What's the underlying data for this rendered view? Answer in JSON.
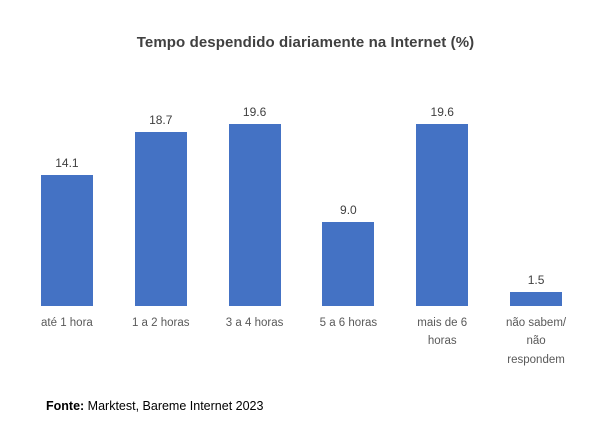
{
  "title": "Tempo despendido diariamente na Internet (%)",
  "footer": {
    "label": "Fonte:",
    "text": " Marktest, Bareme Internet 2023"
  },
  "colors": {
    "bar": "#4472C4",
    "title_text": "#404040",
    "value_label_text": "#404040",
    "category_label_text": "#595959"
  },
  "chart_data": {
    "type": "bar",
    "title": "Tempo despendido diariamente na Internet (%)",
    "categories": [
      "até 1 hora",
      "1 a 2 horas",
      "3 a 4 horas",
      "5 a 6 horas",
      "mais de 6\nhoras",
      "não sabem/\nnão\nrespondem"
    ],
    "values": [
      14.1,
      18.7,
      19.6,
      9.0,
      19.6,
      1.5
    ],
    "value_labels": [
      "14.1",
      "18.7",
      "19.6",
      "9.0",
      "19.6",
      "1.5"
    ],
    "xlabel": "",
    "ylabel": "",
    "ylim": [
      0,
      20
    ],
    "grid": false,
    "legend": false,
    "axis_lines": false,
    "data_labels": true,
    "bar_color": "#4472C4",
    "source": "Fonte: Marktest, Bareme Internet 2023"
  }
}
